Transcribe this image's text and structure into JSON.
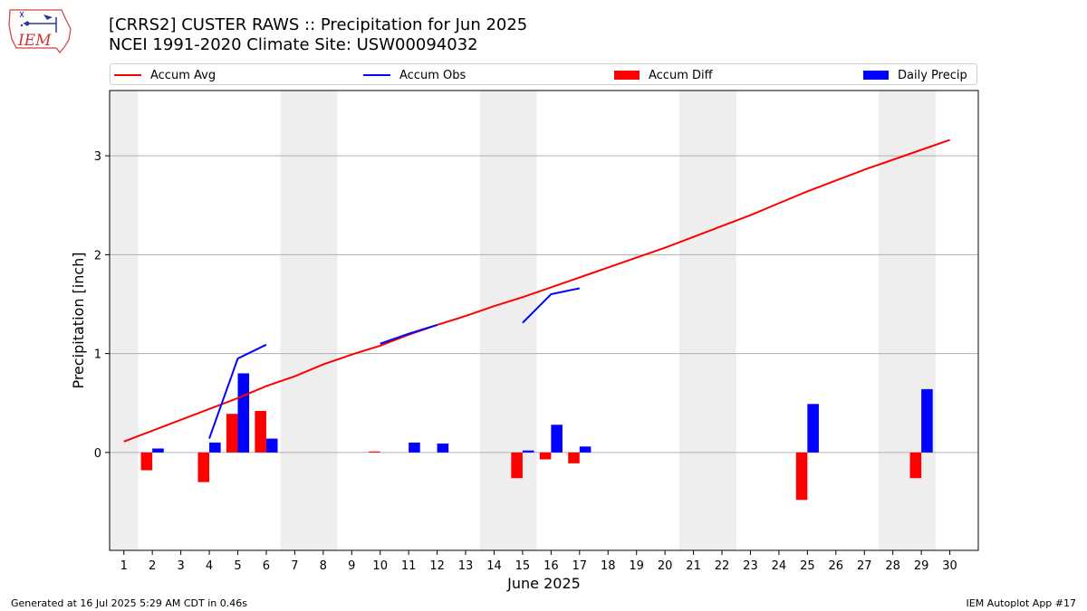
{
  "title_line1": "[CRRS2] CUSTER RAWS :: Precipitation for Jun 2025",
  "title_line2": "NCEI 1991-2020 Climate Site: USW00094032",
  "logo_text": "IEM",
  "footer_left": "Generated at 16 Jul 2025 5:29 AM CDT in 0.46s",
  "footer_right": "IEM Autoplot App #17",
  "colors": {
    "avg": "#ff0000",
    "obs": "#0000ff",
    "diff": "#ff0000",
    "precip": "#0000ff",
    "weekend": "#eeeeee",
    "grid": "#b0b0b0"
  },
  "legend": [
    {
      "label": "Accum Avg",
      "kind": "line",
      "color": "#ff0000"
    },
    {
      "label": "Accum Obs",
      "kind": "line",
      "color": "#0000ff"
    },
    {
      "label": "Accum Diff",
      "kind": "box",
      "color": "#ff0000"
    },
    {
      "label": "Daily Precip",
      "kind": "box",
      "color": "#0000ff"
    }
  ],
  "chart_data": {
    "type": "bar",
    "xlabel": "June 2025",
    "ylabel": "Precipitation [inch]",
    "xlim": [
      0.5,
      31
    ],
    "ylim": [
      -0.99,
      3.66
    ],
    "x_ticks": [
      1,
      2,
      3,
      4,
      5,
      6,
      7,
      8,
      9,
      10,
      11,
      12,
      13,
      14,
      15,
      16,
      17,
      18,
      19,
      20,
      21,
      22,
      23,
      24,
      25,
      26,
      27,
      28,
      29,
      30
    ],
    "y_ticks": [
      0,
      1,
      2,
      3
    ],
    "grid": "horizontal",
    "legend_position": "top",
    "weekend_bands": [
      [
        0.5,
        1.5
      ],
      [
        6.5,
        8.5
      ],
      [
        13.5,
        15.5
      ],
      [
        20.5,
        22.5
      ],
      [
        27.5,
        29.5
      ]
    ],
    "series": [
      {
        "name": "Accum Avg",
        "type": "line",
        "x": [
          1,
          2,
          3,
          4,
          5,
          6,
          7,
          8,
          9,
          10,
          11,
          12,
          13,
          14,
          15,
          16,
          17,
          18,
          19,
          20,
          21,
          22,
          23,
          24,
          25,
          26,
          27,
          28,
          29,
          30
        ],
        "values": [
          0.11,
          0.22,
          0.33,
          0.44,
          0.55,
          0.67,
          0.77,
          0.89,
          0.99,
          1.08,
          1.19,
          1.29,
          1.38,
          1.48,
          1.57,
          1.67,
          1.77,
          1.87,
          1.97,
          2.07,
          2.18,
          2.29,
          2.4,
          2.52,
          2.64,
          2.75,
          2.86,
          2.96,
          3.06,
          3.16
        ]
      },
      {
        "name": "Accum Obs",
        "type": "line",
        "x": [
          4,
          5,
          6,
          null,
          10,
          11,
          12,
          null,
          15,
          16,
          17
        ],
        "values": [
          0.14,
          0.95,
          1.09,
          null,
          1.1,
          1.2,
          1.29,
          null,
          1.31,
          1.6,
          1.66
        ]
      },
      {
        "name": "Accum Diff",
        "type": "bar",
        "x": [
          2,
          4,
          5,
          6,
          10,
          15,
          16,
          17,
          25,
          29
        ],
        "values": [
          -0.18,
          -0.3,
          0.39,
          0.42,
          0.01,
          -0.26,
          -0.07,
          -0.11,
          -0.48,
          -0.26
        ]
      },
      {
        "name": "Daily Precip",
        "type": "bar",
        "x": [
          2,
          4,
          5,
          6,
          11,
          12,
          15,
          16,
          17,
          25,
          29
        ],
        "values": [
          0.04,
          0.1,
          0.8,
          0.14,
          0.1,
          0.09,
          0.02,
          0.28,
          0.06,
          0.49,
          0.64
        ]
      }
    ]
  }
}
